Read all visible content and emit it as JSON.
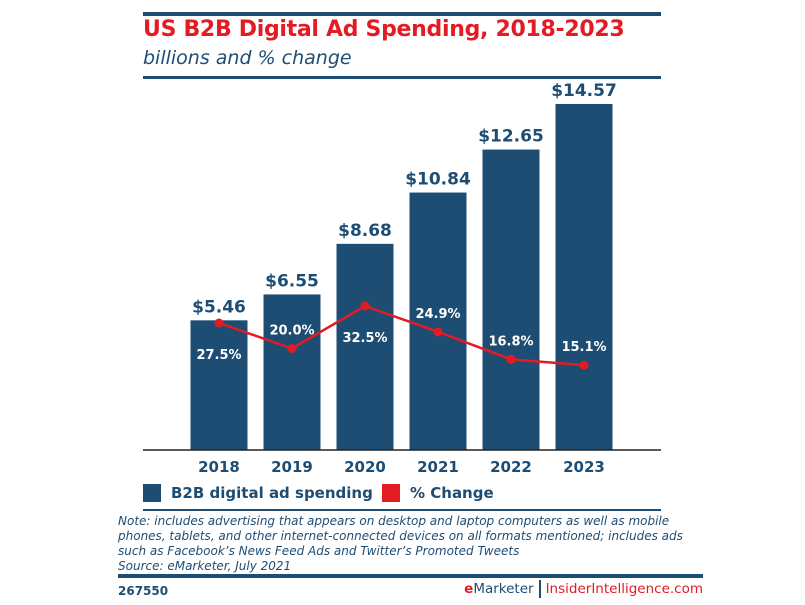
{
  "chart_data": {
    "type": "bar+line",
    "title": "US B2B Digital Ad Spending, 2018-2023",
    "subtitle": "billions and % change",
    "categories": [
      "2018",
      "2019",
      "2020",
      "2021",
      "2022",
      "2023"
    ],
    "series": [
      {
        "name": "B2B digital ad spending",
        "type": "bar",
        "color": "#1e4d74",
        "values": [
          5.46,
          6.55,
          8.68,
          10.84,
          12.65,
          14.57
        ],
        "labels": [
          "$5.46",
          "$6.55",
          "$8.68",
          "$10.84",
          "$12.65",
          "$14.57"
        ]
      },
      {
        "name": "% Change",
        "type": "line",
        "color": "#e31b23",
        "values": [
          27.5,
          20.0,
          32.5,
          24.9,
          16.8,
          15.1
        ],
        "labels": [
          "27.5%",
          "20.0%",
          "32.5%",
          "24.9%",
          "16.8%",
          "15.1%"
        ]
      }
    ],
    "grid": false,
    "legend": "bottom-left"
  },
  "note": "Note: includes advertising that appears on desktop and laptop computers as well as mobile phones, tablets, and other internet-connected devices on all formats mentioned; includes ads such as Facebook’s News Feed Ads and Twitter’s Promoted Tweets",
  "source": "Source: eMarketer, July 2021",
  "chart_id": "267550",
  "brand": {
    "emarketer_e": "e",
    "emarketer_rest": "Marketer",
    "insider": "InsiderIntelligence.com"
  }
}
